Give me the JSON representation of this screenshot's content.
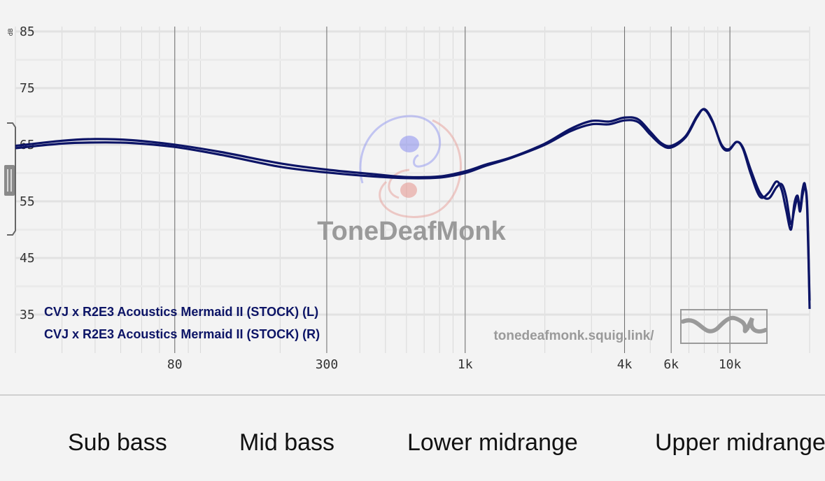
{
  "chart_data": {
    "type": "line",
    "ylabel": "dB",
    "y_ticks": [
      "85",
      "75",
      "65",
      "55",
      "45",
      "35"
    ],
    "ylim": [
      35,
      85
    ],
    "x_scale": "log",
    "x_ticks": [
      "80",
      "300",
      "1k",
      "4k",
      "6k",
      "10k"
    ],
    "xlim": [
      20,
      20000
    ],
    "grid": true,
    "legend_position": "bottom-left",
    "series": [
      {
        "name": "CVJ x R2E3 Acoustics Mermaid II (STOCK) (L)",
        "color": "#0c1466",
        "points": [
          [
            20,
            64.8
          ],
          [
            30,
            65.7
          ],
          [
            40,
            66.0
          ],
          [
            55,
            65.8
          ],
          [
            80,
            65.0
          ],
          [
            120,
            63.7
          ],
          [
            200,
            61.7
          ],
          [
            300,
            60.6
          ],
          [
            450,
            59.8
          ],
          [
            600,
            59.3
          ],
          [
            800,
            59.4
          ],
          [
            1000,
            60.3
          ],
          [
            1200,
            61.5
          ],
          [
            1500,
            62.8
          ],
          [
            2000,
            65.2
          ],
          [
            2500,
            67.8
          ],
          [
            3000,
            69.2
          ],
          [
            3500,
            69.1
          ],
          [
            4000,
            69.8
          ],
          [
            4500,
            69.5
          ],
          [
            5000,
            67.3
          ],
          [
            5500,
            65.3
          ],
          [
            6000,
            64.8
          ],
          [
            6800,
            66.5
          ],
          [
            7500,
            70.0
          ],
          [
            8000,
            71.2
          ],
          [
            8600,
            69.0
          ],
          [
            9300,
            65.0
          ],
          [
            9900,
            64.2
          ],
          [
            10600,
            65.5
          ],
          [
            11200,
            64.5
          ],
          [
            12000,
            60.5
          ],
          [
            13000,
            56.5
          ],
          [
            14000,
            55.5
          ],
          [
            15000,
            57.5
          ],
          [
            15700,
            58.0
          ],
          [
            16300,
            55.8
          ],
          [
            17000,
            51.0
          ],
          [
            17500,
            53.5
          ],
          [
            18000,
            55.5
          ],
          [
            18400,
            53.2
          ],
          [
            18800,
            56.0
          ],
          [
            19200,
            57.5
          ],
          [
            19600,
            54.0
          ],
          [
            20000,
            37.5
          ]
        ]
      },
      {
        "name": "CVJ x R2E3 Acoustics Mermaid II (STOCK) (R)",
        "color": "#0c1466",
        "points": [
          [
            20,
            64.4
          ],
          [
            30,
            65.2
          ],
          [
            40,
            65.4
          ],
          [
            55,
            65.3
          ],
          [
            80,
            64.6
          ],
          [
            120,
            63.2
          ],
          [
            200,
            61.1
          ],
          [
            300,
            60.1
          ],
          [
            450,
            59.4
          ],
          [
            600,
            59.1
          ],
          [
            800,
            59.2
          ],
          [
            1000,
            60.0
          ],
          [
            1200,
            61.3
          ],
          [
            1500,
            62.7
          ],
          [
            2000,
            65.0
          ],
          [
            2500,
            67.4
          ],
          [
            3000,
            68.6
          ],
          [
            3500,
            68.6
          ],
          [
            4000,
            69.3
          ],
          [
            4500,
            69.0
          ],
          [
            5000,
            66.8
          ],
          [
            5500,
            65.0
          ],
          [
            6000,
            64.5
          ],
          [
            6800,
            66.3
          ],
          [
            7500,
            69.8
          ],
          [
            8000,
            71.3
          ],
          [
            8600,
            69.2
          ],
          [
            9300,
            64.8
          ],
          [
            9900,
            64.0
          ],
          [
            10600,
            65.5
          ],
          [
            11200,
            64.3
          ],
          [
            12000,
            59.8
          ],
          [
            13000,
            55.8
          ],
          [
            14000,
            56.5
          ],
          [
            15000,
            58.5
          ],
          [
            15700,
            57.0
          ],
          [
            16300,
            53.5
          ],
          [
            17000,
            50.0
          ],
          [
            17500,
            54.5
          ],
          [
            18000,
            56.0
          ],
          [
            18400,
            53.8
          ],
          [
            18800,
            57.0
          ],
          [
            19200,
            58.0
          ],
          [
            19600,
            53.0
          ],
          [
            20000,
            36.0
          ]
        ]
      }
    ]
  },
  "watermark": {
    "brand": "ToneDeafMonk",
    "url": "tonedeafmonk.squig.link/"
  },
  "bands": [
    "Sub bass",
    "Mid bass",
    "Lower midrange",
    "Upper midrange"
  ]
}
